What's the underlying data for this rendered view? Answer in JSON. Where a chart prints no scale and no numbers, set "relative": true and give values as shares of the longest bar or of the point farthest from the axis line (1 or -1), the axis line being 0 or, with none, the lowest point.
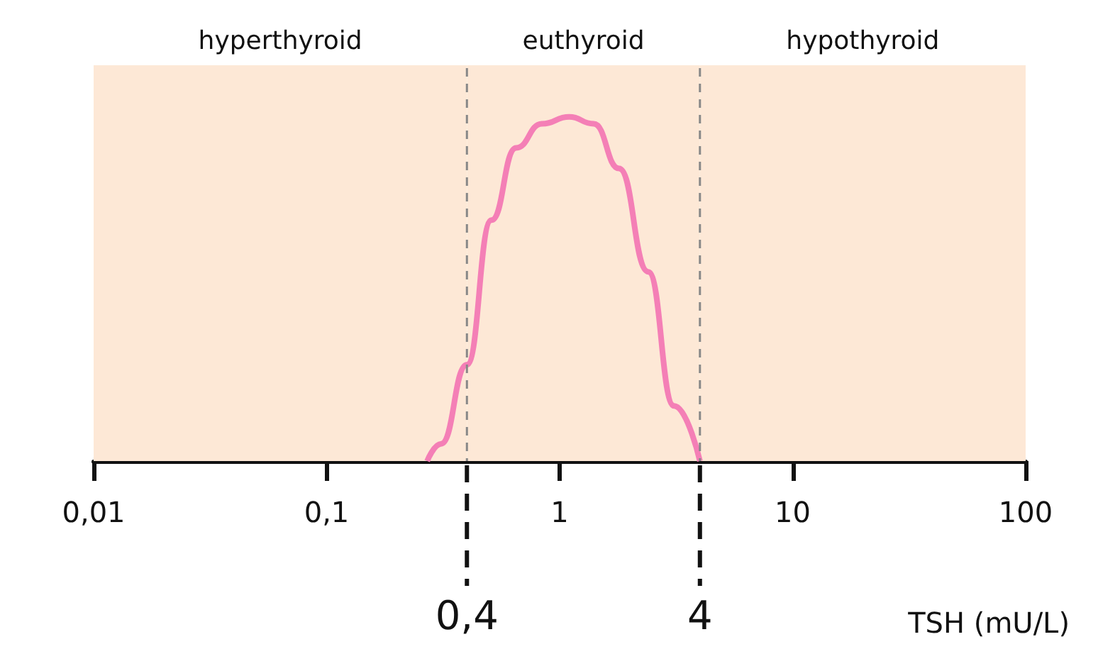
{
  "chart_data": {
    "type": "line",
    "relative": true,
    "xlabel": "TSH (mU/L)",
    "log": "x",
    "xlim": [
      0.01,
      100
    ],
    "xticks": [
      {
        "value": 0.01,
        "label": "0,01"
      },
      {
        "value": 0.1,
        "label": "0,1"
      },
      {
        "value": 1,
        "label": "1"
      },
      {
        "value": 10,
        "label": "10"
      },
      {
        "value": 100,
        "label": "100"
      }
    ],
    "x": [
      0.27,
      0.31,
      0.4,
      0.51,
      0.65,
      0.84,
      1.1,
      1.4,
      1.8,
      2.4,
      3.1,
      4
    ],
    "series": [
      {
        "color": "#f47fb6",
        "values": [
          0,
          0.05,
          0.28,
          0.7,
          0.91,
          0.98,
          1,
          0.98,
          0.85,
          0.55,
          0.16,
          0
        ]
      }
    ],
    "ref_lines": [
      {
        "axis": "x",
        "value": 0.4,
        "label": "0,4",
        "line_style": "dashed"
      },
      {
        "axis": "x",
        "value": 4,
        "label": "4",
        "line_style": "dashed"
      }
    ],
    "bands": [
      {
        "axis": "x",
        "from": 0.01,
        "to": 0.4,
        "label": "hyperthyroid",
        "color": "#fde8d6"
      },
      {
        "axis": "x",
        "from": 0.4,
        "to": 4,
        "label": "euthyroid",
        "color": "#fde8d6"
      },
      {
        "axis": "x",
        "from": 4,
        "to": 100,
        "label": "hypothyroid",
        "color": "#fde8d6"
      }
    ],
    "grid": false,
    "marker": "none"
  }
}
